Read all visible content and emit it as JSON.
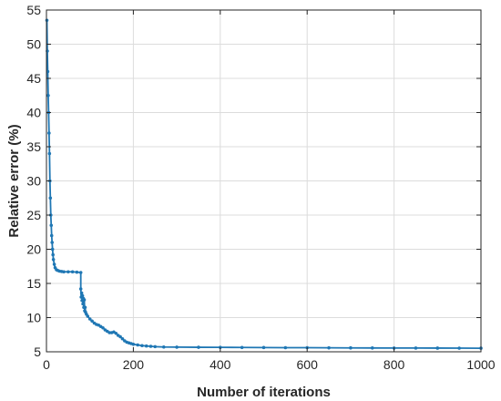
{
  "chart_data": {
    "type": "line",
    "title": "",
    "xlabel": "Number of iterations",
    "ylabel": "Relative error (%)",
    "xlim": [
      0,
      1000
    ],
    "ylim": [
      5,
      55
    ],
    "x_ticks": [
      "0",
      "200",
      "400",
      "600",
      "800",
      "1000"
    ],
    "y_ticks": [
      "5",
      "10",
      "15",
      "20",
      "25",
      "30",
      "35",
      "40",
      "45",
      "50",
      "55"
    ],
    "grid": true,
    "legend": "none",
    "colors": {
      "series": "#1f77b4"
    },
    "series": [
      {
        "marker": "dot",
        "x": [
          1,
          2,
          3,
          4,
          5,
          6,
          7,
          8,
          9,
          10,
          11,
          12,
          13,
          14,
          15,
          16,
          18,
          20,
          23,
          26,
          30,
          35,
          40,
          50,
          60,
          70,
          79,
          79,
          80,
          81,
          82,
          83,
          84,
          85,
          86,
          87,
          88,
          89,
          90,
          92,
          95,
          100,
          105,
          110,
          115,
          120,
          125,
          130,
          135,
          140,
          145,
          150,
          155,
          160,
          165,
          170,
          175,
          180,
          185,
          190,
          195,
          200,
          210,
          220,
          230,
          240,
          250,
          270,
          300,
          350,
          400,
          450,
          500,
          550,
          600,
          650,
          700,
          750,
          800,
          850,
          900,
          950,
          1000
        ],
        "y": [
          53.5,
          49.0,
          46.0,
          42.5,
          40.0,
          37.0,
          34.0,
          30.0,
          27.5,
          25.0,
          23.5,
          22.0,
          21.0,
          20.0,
          19.2,
          18.5,
          17.8,
          17.3,
          17.0,
          16.9,
          16.8,
          16.75,
          16.7,
          16.7,
          16.7,
          16.65,
          16.6,
          14.2,
          13.0,
          13.6,
          12.5,
          13.2,
          12.0,
          12.8,
          11.5,
          12.6,
          11.0,
          11.5,
          10.8,
          10.5,
          10.2,
          9.8,
          9.5,
          9.2,
          9.0,
          8.9,
          8.7,
          8.5,
          8.2,
          8.0,
          7.8,
          7.8,
          7.9,
          7.7,
          7.4,
          7.2,
          6.9,
          6.6,
          6.4,
          6.3,
          6.2,
          6.1,
          6.0,
          5.9,
          5.85,
          5.8,
          5.75,
          5.7,
          5.68,
          5.66,
          5.65,
          5.63,
          5.62,
          5.6,
          5.6,
          5.58,
          5.57,
          5.56,
          5.55,
          5.55,
          5.54,
          5.53,
          5.52
        ]
      }
    ]
  }
}
